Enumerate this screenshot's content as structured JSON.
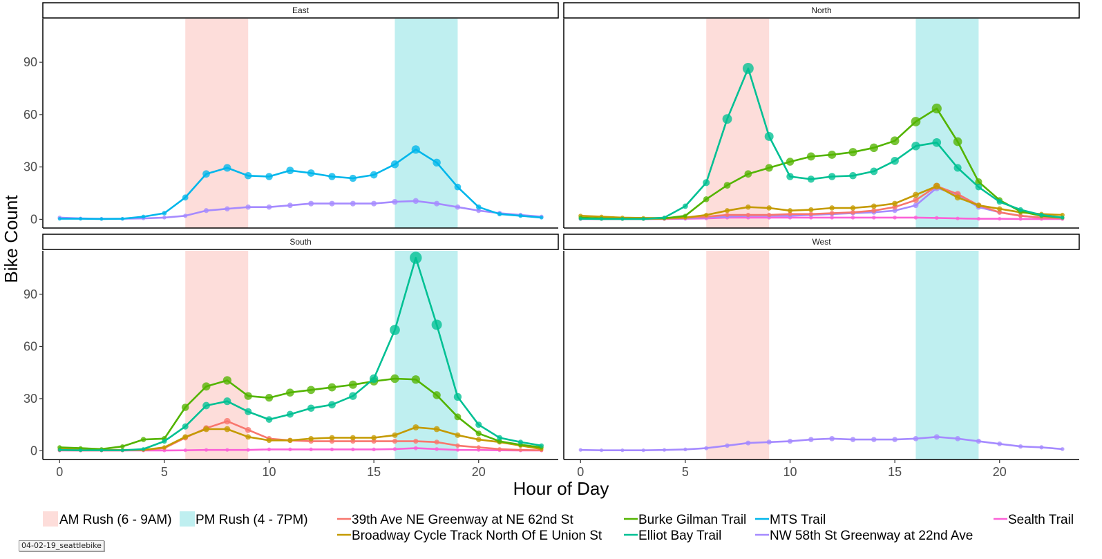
{
  "caption": "04-02-19_seattlebike",
  "chart_data": {
    "type": "line",
    "xlabel": "Hour of Day",
    "ylabel": "Bike Count",
    "xlim": [
      -0.8,
      23.8
    ],
    "ylim": [
      -5,
      115
    ],
    "x_ticks": [
      0,
      5,
      10,
      15,
      20
    ],
    "y_ticks": [
      0,
      30,
      60,
      90
    ],
    "grid": false,
    "legend_position": "bottom",
    "bands": [
      {
        "name": "AM Rush (6 - 9AM)",
        "from": 6,
        "to": 9,
        "color": "#f8766d"
      },
      {
        "name": "PM Rush (4 - 7PM)",
        "from": 16,
        "to": 19,
        "color": "#00bfc4"
      }
    ],
    "series_colors": {
      "39th Ave NE Greenway at NE 62nd St": "#f8766d",
      "Broadway Cycle Track North Of E Union St": "#c49a00",
      "Burke Gilman Trail": "#53b400",
      "Elliot Bay Trail": "#00c094",
      "MTS Trail": "#00b6eb",
      "NW 58th St Greenway at 22nd Ave": "#a58aff",
      "Sealth Trail": "#fb61d7"
    },
    "legend_order": [
      "39th Ave NE Greenway at NE 62nd St",
      "Broadway Cycle Track North Of E Union St",
      "Burke Gilman Trail",
      "Elliot Bay Trail",
      "MTS Trail",
      "NW 58th St Greenway at 22nd Ave",
      "Sealth Trail"
    ],
    "panels": [
      {
        "title": "East",
        "series": [
          {
            "name": "NW 58th St Greenway at 22nd Ave",
            "x": [
              0,
              1,
              2,
              3,
              4,
              5,
              6,
              7,
              8,
              9,
              10,
              11,
              12,
              13,
              14,
              15,
              16,
              17,
              18,
              19,
              20,
              21,
              22,
              23
            ],
            "y": [
              1,
              0.5,
              0.3,
              0.3,
              0.5,
              1,
              2,
              5,
              6,
              7,
              7,
              8,
              9,
              9,
              9,
              9,
              10,
              10.5,
              9,
              7,
              5,
              3.5,
              2.5,
              1.5
            ]
          },
          {
            "name": "MTS Trail",
            "x": [
              0,
              1,
              2,
              3,
              4,
              5,
              6,
              7,
              8,
              9,
              10,
              11,
              12,
              13,
              14,
              15,
              16,
              17,
              18,
              19,
              20,
              21,
              22,
              23
            ],
            "y": [
              0.3,
              0.3,
              0.2,
              0.3,
              1.5,
              3.5,
              12.5,
              26,
              29.5,
              25,
              24.5,
              28,
              26.5,
              24.5,
              23.5,
              25.5,
              31.5,
              40,
              32.5,
              18.5,
              7,
              3,
              2,
              1
            ]
          }
        ]
      },
      {
        "title": "North",
        "series": [
          {
            "name": "Sealth Trail",
            "x": [
              0,
              1,
              2,
              3,
              4,
              5,
              6,
              7,
              8,
              9,
              10,
              11,
              12,
              13,
              14,
              15,
              16,
              17,
              18,
              19,
              20,
              21,
              22,
              23
            ],
            "y": [
              0.2,
              0.2,
              0.2,
              0.2,
              0.2,
              0.3,
              0.5,
              1,
              1,
              1,
              1,
              1,
              1,
              1,
              1,
              1,
              1,
              0.8,
              0.5,
              0.3,
              0.3,
              0.2,
              0.2,
              0.2
            ]
          },
          {
            "name": "NW 58th St Greenway at 22nd Ave",
            "x": [
              0,
              1,
              2,
              3,
              4,
              5,
              6,
              7,
              8,
              9,
              10,
              11,
              12,
              13,
              14,
              15,
              16,
              17,
              18,
              19,
              20,
              21,
              22,
              23
            ],
            "y": [
              0.3,
              0.2,
              0.2,
              0.2,
              0.3,
              0.5,
              1,
              1.5,
              2,
              2,
              2,
              2.5,
              3,
              3.5,
              4,
              5,
              8,
              18,
              14,
              7,
              4,
              2,
              1,
              0.5
            ]
          },
          {
            "name": "39th Ave NE Greenway at NE 62nd St",
            "x": [
              0,
              1,
              2,
              3,
              4,
              5,
              6,
              7,
              8,
              9,
              10,
              11,
              12,
              13,
              14,
              15,
              16,
              17,
              18,
              19,
              20,
              21,
              22,
              23
            ],
            "y": [
              0.3,
              0.2,
              0.2,
              0.2,
              0.3,
              0.8,
              1.5,
              2.5,
              2.5,
              2.5,
              3,
              3,
              3.5,
              4,
              5,
              7,
              11,
              19,
              14.5,
              8,
              4,
              2,
              1,
              0.5
            ]
          },
          {
            "name": "Broadway Cycle Track North Of E Union St",
            "x": [
              0,
              1,
              2,
              3,
              4,
              5,
              6,
              7,
              8,
              9,
              10,
              11,
              12,
              13,
              14,
              15,
              16,
              17,
              18,
              19,
              20,
              21,
              22,
              23
            ],
            "y": [
              2,
              1.5,
              1,
              0.8,
              0.8,
              1,
              2.5,
              5,
              7,
              6.5,
              5,
              5.5,
              6.5,
              6.5,
              7.5,
              9,
              14,
              19,
              12.5,
              8,
              6,
              4,
              3,
              2.5
            ]
          },
          {
            "name": "Burke Gilman Trail",
            "x": [
              0,
              1,
              2,
              3,
              4,
              5,
              6,
              7,
              8,
              9,
              10,
              11,
              12,
              13,
              14,
              15,
              16,
              17,
              18,
              19,
              20,
              21,
              22,
              23
            ],
            "y": [
              1,
              0.5,
              0.3,
              0.3,
              0.5,
              2,
              11.5,
              19.5,
              26,
              29.5,
              33,
              36,
              37,
              38.5,
              41,
              45,
              56,
              63.5,
              44.5,
              21.5,
              11,
              4.5,
              2,
              1
            ]
          },
          {
            "name": "Elliot Bay Trail",
            "x": [
              0,
              1,
              2,
              3,
              4,
              5,
              6,
              7,
              8,
              9,
              10,
              11,
              12,
              13,
              14,
              15,
              16,
              17,
              18,
              19,
              20,
              21,
              22,
              23
            ],
            "y": [
              0.3,
              0.2,
              0.2,
              0.2,
              1,
              7.5,
              21,
              57.5,
              86.5,
              47.5,
              24.5,
              23,
              24.5,
              25,
              27.5,
              33.5,
              42,
              44,
              29.5,
              18.5,
              10,
              5.5,
              2.5,
              1
            ]
          }
        ]
      },
      {
        "title": "South",
        "series": [
          {
            "name": "Sealth Trail",
            "x": [
              0,
              1,
              2,
              3,
              4,
              5,
              6,
              7,
              8,
              9,
              10,
              11,
              12,
              13,
              14,
              15,
              16,
              17,
              18,
              19,
              20,
              21,
              22,
              23
            ],
            "y": [
              0.2,
              0.2,
              0.2,
              0.2,
              0.2,
              0.2,
              0.3,
              0.5,
              0.5,
              0.5,
              0.8,
              0.8,
              0.8,
              0.8,
              0.8,
              0.8,
              1,
              1.5,
              1,
              0.5,
              0.5,
              0.3,
              0.2,
              0.2
            ]
          },
          {
            "name": "39th Ave NE Greenway at NE 62nd St",
            "x": [
              0,
              1,
              2,
              3,
              4,
              5,
              6,
              7,
              8,
              9,
              10,
              11,
              12,
              13,
              14,
              15,
              16,
              17,
              18,
              19,
              20,
              21,
              22,
              23
            ],
            "y": [
              0.3,
              0.2,
              0.2,
              0.2,
              0.5,
              1.5,
              7.5,
              13,
              17,
              12,
              7,
              6,
              5.5,
              5.5,
              5.5,
              5.5,
              5.5,
              5.5,
              5,
              3,
              2,
              1,
              0.5,
              0.3
            ]
          },
          {
            "name": "Broadway Cycle Track North Of E Union St",
            "x": [
              0,
              1,
              2,
              3,
              4,
              5,
              6,
              7,
              8,
              9,
              10,
              11,
              12,
              13,
              14,
              15,
              16,
              17,
              18,
              19,
              20,
              21,
              22,
              23
            ],
            "y": [
              1,
              0.8,
              0.5,
              0.5,
              0.5,
              2,
              8,
              12.5,
              12.5,
              8,
              6,
              6,
              7,
              7.5,
              7.5,
              7.5,
              9,
              13.5,
              12.5,
              9,
              6.5,
              5,
              3,
              1
            ]
          },
          {
            "name": "Burke Gilman Trail",
            "x": [
              0,
              1,
              2,
              3,
              4,
              5,
              6,
              7,
              8,
              9,
              10,
              11,
              12,
              13,
              14,
              15,
              16,
              17,
              18,
              19,
              20,
              21,
              22,
              23
            ],
            "y": [
              2,
              1.5,
              1,
              2.5,
              6.5,
              7,
              25,
              37,
              40.5,
              31.5,
              30.5,
              33.5,
              35,
              36.5,
              38,
              40,
              41.5,
              41,
              32,
              19.5,
              10,
              5.5,
              3.5,
              2
            ]
          },
          {
            "name": "Elliot Bay Trail",
            "x": [
              0,
              1,
              2,
              3,
              4,
              5,
              6,
              7,
              8,
              9,
              10,
              11,
              12,
              13,
              14,
              15,
              16,
              17,
              18,
              19,
              20,
              21,
              22,
              23
            ],
            "y": [
              0.5,
              0.3,
              0.3,
              0.3,
              1,
              5.5,
              14,
              26,
              28.5,
              22.5,
              18,
              21,
              24.5,
              26.5,
              31.5,
              41.5,
              69.5,
              111,
              72.5,
              31,
              15,
              7.5,
              5,
              3
            ]
          }
        ]
      },
      {
        "title": "West",
        "series": [
          {
            "name": "NW 58th St Greenway at 22nd Ave",
            "x": [
              0,
              1,
              2,
              3,
              4,
              5,
              6,
              7,
              8,
              9,
              10,
              11,
              12,
              13,
              14,
              15,
              16,
              17,
              18,
              19,
              20,
              21,
              22,
              23
            ],
            "y": [
              0.5,
              0.3,
              0.3,
              0.3,
              0.5,
              0.8,
              1.5,
              3,
              4.5,
              5,
              5.5,
              6.5,
              7,
              6.5,
              6.5,
              6.5,
              7,
              8,
              7,
              5.5,
              4,
              2.5,
              2,
              1
            ]
          }
        ]
      }
    ]
  }
}
